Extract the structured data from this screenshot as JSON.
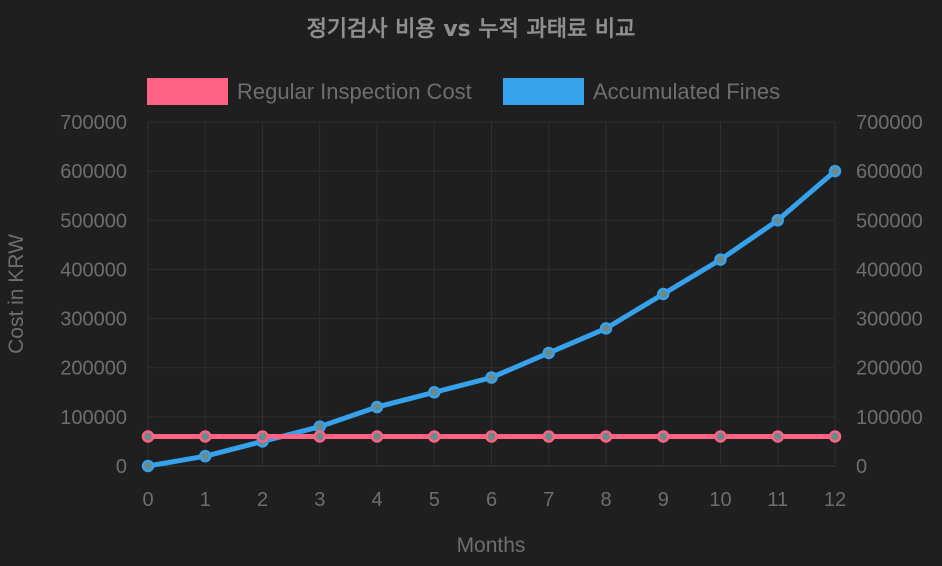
{
  "chart_data": {
    "type": "line",
    "title": "정기검사 비용 vs 누적 과태료 비교",
    "xlabel": "Months",
    "ylabel": "Cost in KRW",
    "categories": [
      "0",
      "1",
      "2",
      "3",
      "4",
      "5",
      "6",
      "7",
      "8",
      "9",
      "10",
      "11",
      "12"
    ],
    "y_ticks": [
      "0",
      "100000",
      "200000",
      "300000",
      "400000",
      "500000",
      "600000",
      "700000"
    ],
    "ylim": [
      0,
      700000
    ],
    "legend_position": "top",
    "series": [
      {
        "name": "Regular Inspection Cost",
        "color": "#ff6384",
        "values": [
          60000,
          60000,
          60000,
          60000,
          60000,
          60000,
          60000,
          60000,
          60000,
          60000,
          60000,
          60000,
          60000
        ]
      },
      {
        "name": "Accumulated Fines",
        "color": "#36a2eb",
        "values": [
          0,
          20000,
          50000,
          80000,
          120000,
          150000,
          180000,
          230000,
          280000,
          350000,
          420000,
          500000,
          600000
        ]
      }
    ],
    "marker_fill": "#6b8a8a",
    "grid": true
  }
}
